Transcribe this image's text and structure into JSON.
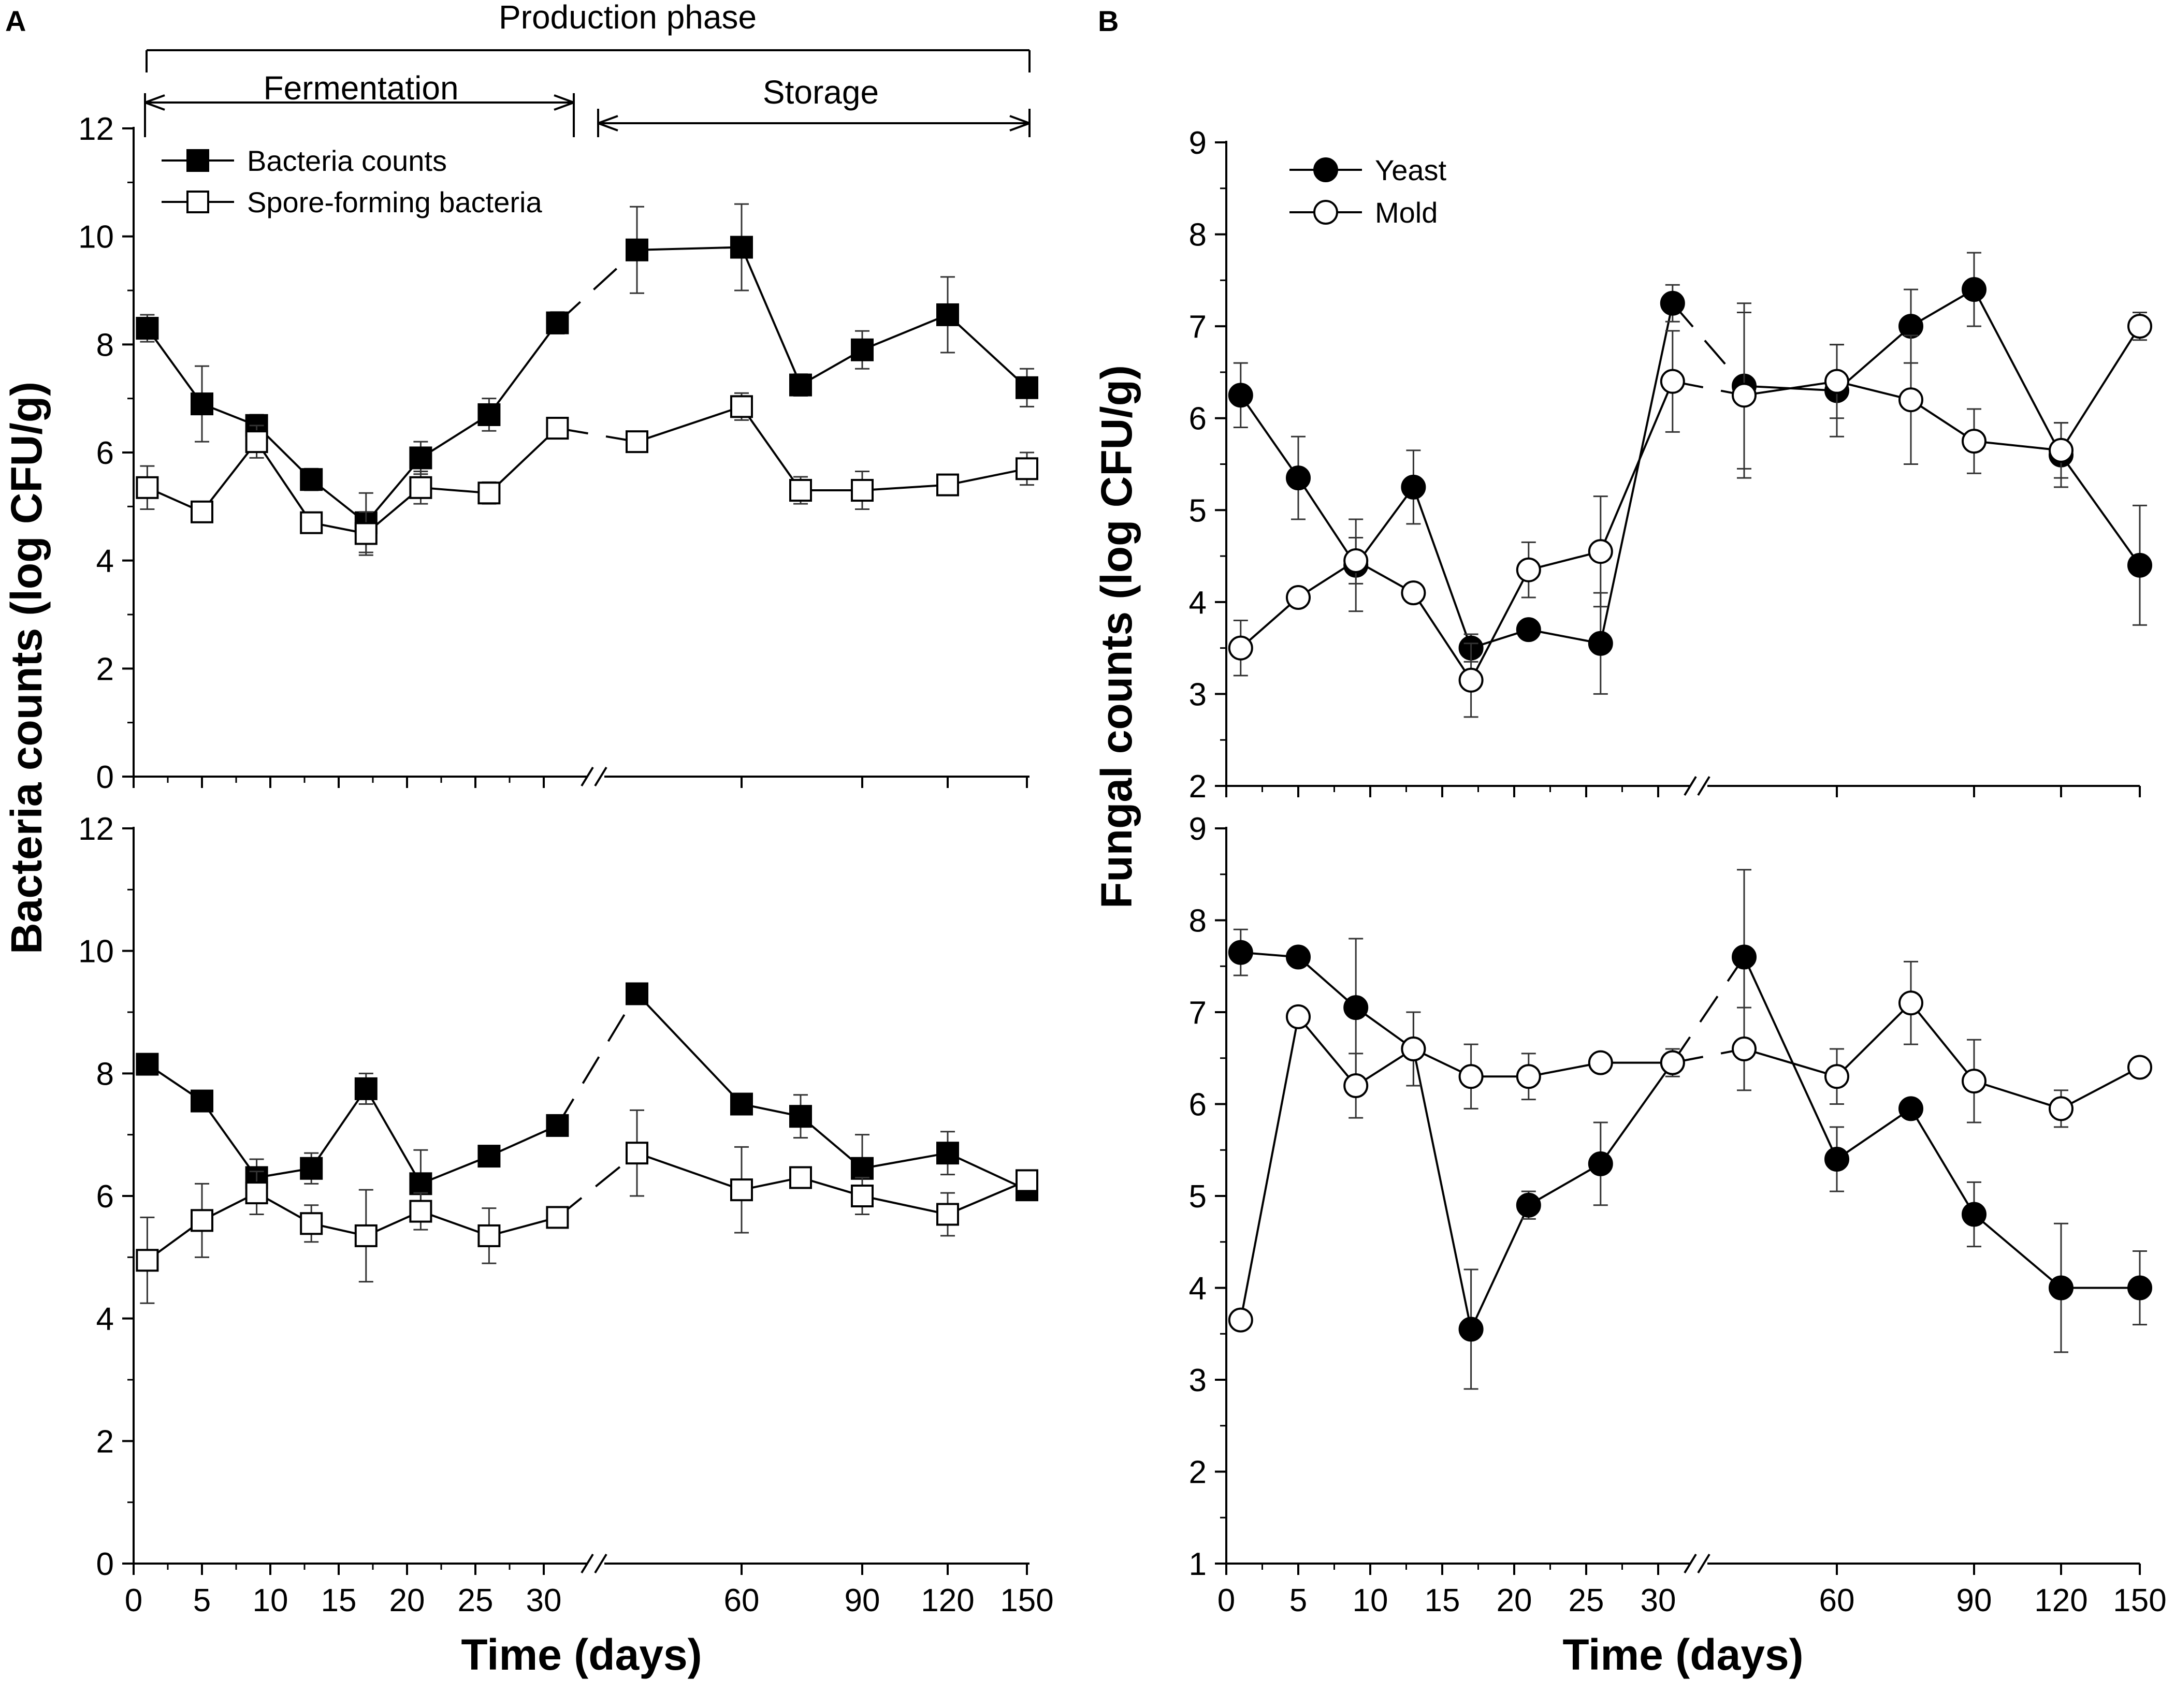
{
  "figure": {
    "panel_a_label": "A",
    "panel_b_label": "B",
    "phase_label": "Production phase",
    "fermentation_label": "Fermentation",
    "storage_label": "Storage"
  },
  "chart_data": [
    {
      "id": "A-top",
      "type": "line",
      "panel": "A",
      "ylabel": "Bacteria counts (log CFU/g)",
      "xlabel": "",
      "ylim": [
        0,
        12
      ],
      "yticks": [
        0,
        2,
        4,
        6,
        8,
        10,
        12
      ],
      "legend": {
        "position": "top-left",
        "entries": [
          "Bacteria counts",
          "Spore-forming bacteria"
        ]
      },
      "series": [
        {
          "name": "Bacteria counts",
          "marker": "filled-square",
          "x": [
            1,
            5,
            9,
            13,
            17,
            21,
            26,
            31,
            35,
            45,
            60,
            75,
            90,
            120,
            150
          ],
          "y": [
            8.3,
            6.9,
            6.5,
            5.5,
            4.7,
            5.9,
            6.7,
            8.4,
            null,
            9.75,
            9.8,
            7.25,
            7.9,
            8.55,
            7.2
          ],
          "err": [
            0.25,
            0.7,
            0.2,
            0.2,
            0.55,
            0.3,
            0.3,
            0.2,
            null,
            0.8,
            0.8,
            0.2,
            0.35,
            0.7,
            0.35
          ]
        },
        {
          "name": "Spore-forming bacteria",
          "marker": "open-square",
          "x": [
            1,
            5,
            9,
            13,
            17,
            21,
            26,
            31,
            35,
            45,
            60,
            75,
            90,
            120,
            150
          ],
          "y": [
            5.35,
            4.9,
            6.2,
            4.7,
            4.5,
            5.35,
            5.25,
            6.45,
            null,
            6.2,
            6.85,
            5.3,
            5.3,
            5.4,
            5.7
          ],
          "err": [
            0.4,
            0.15,
            0.3,
            0.15,
            0.4,
            0.3,
            0.2,
            0.15,
            null,
            0.15,
            0.25,
            0.25,
            0.35,
            0.15,
            0.3
          ]
        }
      ]
    },
    {
      "id": "A-bottom",
      "type": "line",
      "panel": "A",
      "ylabel": "",
      "xlabel": "Time (days)",
      "ylim": [
        0,
        12
      ],
      "yticks": [
        0,
        2,
        4,
        6,
        8,
        10,
        12
      ],
      "xticks": [
        "0",
        "5",
        "10",
        "15",
        "20",
        "25",
        "30",
        "60",
        "90",
        "120",
        "150"
      ],
      "series": [
        {
          "name": "Bacteria counts",
          "marker": "filled-square",
          "x": [
            1,
            5,
            9,
            13,
            17,
            21,
            26,
            31,
            35,
            45,
            60,
            75,
            90,
            120,
            150
          ],
          "y": [
            8.15,
            7.55,
            6.3,
            6.45,
            7.75,
            6.2,
            6.65,
            7.15,
            null,
            9.3,
            7.5,
            7.3,
            6.45,
            6.7,
            6.1
          ],
          "err": [
            0.15,
            0.15,
            0.3,
            0.25,
            0.25,
            0.55,
            0.15,
            0.15,
            null,
            0.15,
            0.15,
            0.35,
            0.55,
            0.35,
            0.15
          ]
        },
        {
          "name": "Spore-forming bacteria",
          "marker": "open-square",
          "x": [
            1,
            5,
            9,
            13,
            17,
            21,
            26,
            31,
            35,
            45,
            60,
            75,
            90,
            120,
            150
          ],
          "y": [
            4.95,
            5.6,
            6.05,
            5.55,
            5.35,
            5.75,
            5.35,
            5.65,
            null,
            6.7,
            6.1,
            6.3,
            6.0,
            5.7,
            6.25
          ],
          "err": [
            0.7,
            0.6,
            0.35,
            0.3,
            0.75,
            0.3,
            0.45,
            0.1,
            null,
            0.7,
            0.7,
            0.15,
            0.3,
            0.35,
            0.1
          ]
        }
      ]
    },
    {
      "id": "B-top",
      "type": "line",
      "panel": "B",
      "ylabel": "Fungal counts (log CFU/g)",
      "xlabel": "",
      "ylim": [
        2,
        9
      ],
      "yticks": [
        2,
        3,
        4,
        5,
        6,
        7,
        8,
        9
      ],
      "legend": {
        "position": "top-left",
        "entries": [
          "Yeast",
          "Mold"
        ]
      },
      "series": [
        {
          "name": "Yeast",
          "marker": "filled-circle",
          "x": [
            1,
            5,
            9,
            13,
            17,
            21,
            26,
            31,
            35,
            45,
            60,
            75,
            90,
            120,
            150
          ],
          "y": [
            6.25,
            5.35,
            4.4,
            5.25,
            3.5,
            3.7,
            3.55,
            7.25,
            null,
            6.35,
            6.3,
            7.0,
            7.4,
            5.6,
            4.4
          ],
          "err": [
            0.35,
            0.45,
            0.5,
            0.4,
            0.15,
            0.1,
            0.55,
            0.2,
            null,
            0.9,
            0.5,
            0.4,
            0.4,
            0.35,
            0.65
          ]
        },
        {
          "name": "Mold",
          "marker": "open-circle",
          "x": [
            1,
            5,
            9,
            13,
            17,
            21,
            26,
            31,
            35,
            45,
            60,
            75,
            90,
            120,
            150
          ],
          "y": [
            3.5,
            4.05,
            4.45,
            4.1,
            3.15,
            4.35,
            4.55,
            6.4,
            null,
            6.25,
            6.4,
            6.2,
            5.75,
            5.65,
            7.0
          ],
          "err": [
            0.3,
            0.1,
            0.25,
            0.1,
            0.4,
            0.3,
            0.6,
            0.55,
            null,
            0.9,
            0.4,
            0.7,
            0.35,
            0.3,
            0.15
          ]
        }
      ]
    },
    {
      "id": "B-bottom",
      "type": "line",
      "panel": "B",
      "ylabel": "",
      "xlabel": "Time (days)",
      "ylim": [
        1,
        9
      ],
      "yticks": [
        1,
        2,
        3,
        4,
        5,
        6,
        7,
        8,
        9
      ],
      "xticks": [
        "0",
        "5",
        "10",
        "15",
        "20",
        "25",
        "30",
        "60",
        "90",
        "120",
        "150"
      ],
      "series": [
        {
          "name": "Yeast",
          "marker": "filled-circle",
          "x": [
            1,
            5,
            9,
            13,
            17,
            21,
            26,
            31,
            35,
            45,
            60,
            75,
            90,
            120,
            150
          ],
          "y": [
            7.65,
            7.6,
            7.05,
            6.6,
            3.55,
            4.9,
            5.35,
            6.45,
            null,
            7.6,
            5.4,
            5.95,
            4.8,
            4.0,
            4.0
          ],
          "err": [
            0.25,
            0.1,
            0.75,
            0.4,
            0.65,
            0.15,
            0.45,
            0.15,
            null,
            0.95,
            0.35,
            0.1,
            0.35,
            0.7,
            0.4
          ]
        },
        {
          "name": "Mold",
          "marker": "open-circle",
          "x": [
            1,
            5,
            9,
            13,
            17,
            21,
            26,
            31,
            35,
            45,
            60,
            75,
            90,
            120,
            150
          ],
          "y": [
            3.65,
            6.95,
            6.2,
            6.6,
            6.3,
            6.3,
            6.45,
            6.45,
            null,
            6.6,
            6.3,
            7.1,
            6.25,
            5.95,
            6.4
          ],
          "err": [
            0.1,
            0.1,
            0.35,
            0.4,
            0.35,
            0.25,
            0.1,
            0.1,
            null,
            0.45,
            0.3,
            0.45,
            0.45,
            0.2,
            0.1
          ]
        }
      ]
    }
  ]
}
